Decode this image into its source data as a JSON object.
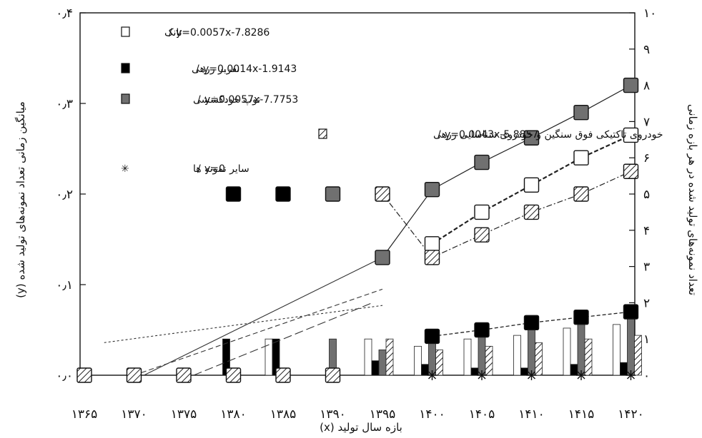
{
  "chart_data": {
    "type": "bar",
    "x_tick_labels": [
      "۱۳۶۵",
      "۱۳۷۰",
      "۱۳۷۵",
      "۱۳۸۰",
      "۱۳۸۵",
      "۱۳۹۰",
      "۱۳۹۵",
      "۱۴۰۰",
      "۱۴۰۵",
      "۱۴۱۰",
      "۱۴۱۵",
      "۱۴۲۰"
    ],
    "x": [
      1365,
      1370,
      1375,
      1380,
      1385,
      1390,
      1395,
      1400,
      1405,
      1410,
      1415,
      1420
    ],
    "xlabel": "بازه سال تولید (x)",
    "ylabel_left": "میانگین زمانی تعداد نمونه‌های تولید شده (y)",
    "ylabel_right": "تعداد نمونه‌های تولید شده در هر بازه زمانی",
    "y_left_ticks": [
      "۰٫۰",
      "۰٫۱",
      "۰٫۲",
      "۰٫۳",
      "۰٫۴"
    ],
    "y_right_ticks": [
      "۰",
      "۱",
      "۲",
      "۳",
      "۴",
      "۵",
      "۶",
      "۷",
      "۸",
      "۹",
      "۱۰"
    ],
    "ylim_left": [
      0,
      0.4
    ],
    "ylim_right": [
      0,
      10
    ],
    "legend_position": "top-left",
    "series": [
      {
        "name": "تانک",
        "equation": "y=0.0057x-7.8286",
        "color": "#ffffff",
        "bar_counts": [
          0,
          0,
          0,
          0,
          1,
          0,
          1,
          0.8,
          1,
          1.1,
          1.3,
          1.4
        ],
        "marker_points": [
          {
            "x": 1400,
            "y": 0.145
          },
          {
            "x": 1405,
            "y": 0.18
          },
          {
            "x": 1410,
            "y": 0.21
          },
          {
            "x": 1415,
            "y": 0.24
          },
          {
            "x": 1420,
            "y": 0.265
          }
        ]
      },
      {
        "name": "نفربر زرهی",
        "equation": "y=0.0014x-1.9143",
        "color": "#000000",
        "bar_counts": [
          0,
          0,
          0,
          1,
          1,
          0,
          0.4,
          0.3,
          0.2,
          0.2,
          0.3,
          0.35
        ],
        "marker_points": [
          {
            "x": 1380,
            "y": 0.2
          },
          {
            "x": 1385,
            "y": 0.2
          },
          {
            "x": 1400,
            "y": 0.043
          },
          {
            "x": 1405,
            "y": 0.05
          },
          {
            "x": 1410,
            "y": 0.058
          },
          {
            "x": 1415,
            "y": 0.064
          },
          {
            "x": 1420,
            "y": 0.07
          }
        ]
      },
      {
        "name": "توپ خودکششی",
        "equation": "y=0.0057x-7.7753",
        "color": "#707070",
        "bar_counts": [
          0,
          0,
          0,
          0,
          0,
          1,
          0.7,
          1,
          1.2,
          1.4,
          1.6,
          1.8
        ],
        "marker_points": [
          {
            "x": 1390,
            "y": 0.2
          },
          {
            "x": 1395,
            "y": 0.13
          },
          {
            "x": 1400,
            "y": 0.205
          },
          {
            "x": 1405,
            "y": 0.235
          },
          {
            "x": 1410,
            "y": 0.262
          },
          {
            "x": 1415,
            "y": 0.29
          },
          {
            "x": 1420,
            "y": 0.32
          }
        ]
      },
      {
        "name": "خودروی تاکتیکی فوق سنگین و خودروی شناسایی زرهی",
        "equation": "y=0.0043x-5.8857",
        "color": "#b0b0b0",
        "bar_counts": [
          0,
          0,
          0,
          0,
          0,
          0,
          1,
          0.7,
          0.8,
          0.9,
          1,
          1.1
        ],
        "marker_points": [
          {
            "x": 1365,
            "y": 0
          },
          {
            "x": 1370,
            "y": 0
          },
          {
            "x": 1375,
            "y": 0
          },
          {
            "x": 1380,
            "y": 0
          },
          {
            "x": 1385,
            "y": 0
          },
          {
            "x": 1390,
            "y": 0
          },
          {
            "x": 1395,
            "y": 0.2
          },
          {
            "x": 1400,
            "y": 0.13
          },
          {
            "x": 1405,
            "y": 0.155
          },
          {
            "x": 1410,
            "y": 0.18
          },
          {
            "x": 1415,
            "y": 0.2
          },
          {
            "x": 1420,
            "y": 0.225
          }
        ]
      },
      {
        "name": "سایر نمونه ها",
        "equation": "y=0",
        "color": "#000000",
        "bar_counts": [
          0,
          0,
          0,
          0,
          0,
          0,
          0,
          0,
          0,
          0,
          0,
          0
        ],
        "marker_points": [
          {
            "x": 1400,
            "y": 0
          },
          {
            "x": 1405,
            "y": 0
          },
          {
            "x": 1410,
            "y": 0
          },
          {
            "x": 1415,
            "y": 0
          },
          {
            "x": 1420,
            "y": 0
          }
        ]
      }
    ],
    "trend_lines": [
      {
        "style": "dotted",
        "points": [
          {
            "x": 1367,
            "y": 0.036
          },
          {
            "x": 1395,
            "y": 0.077
          }
        ]
      },
      {
        "style": "dashed",
        "points": [
          {
            "x": 1370,
            "y": 0
          },
          {
            "x": 1395,
            "y": 0.095
          }
        ]
      },
      {
        "style": "solid",
        "points": [
          {
            "x": 1371,
            "y": 0
          },
          {
            "x": 1395,
            "y": 0.13
          }
        ]
      },
      {
        "style": "long-dashed",
        "points": [
          {
            "x": 1376,
            "y": 0
          },
          {
            "x": 1394,
            "y": 0.08
          }
        ]
      }
    ]
  }
}
